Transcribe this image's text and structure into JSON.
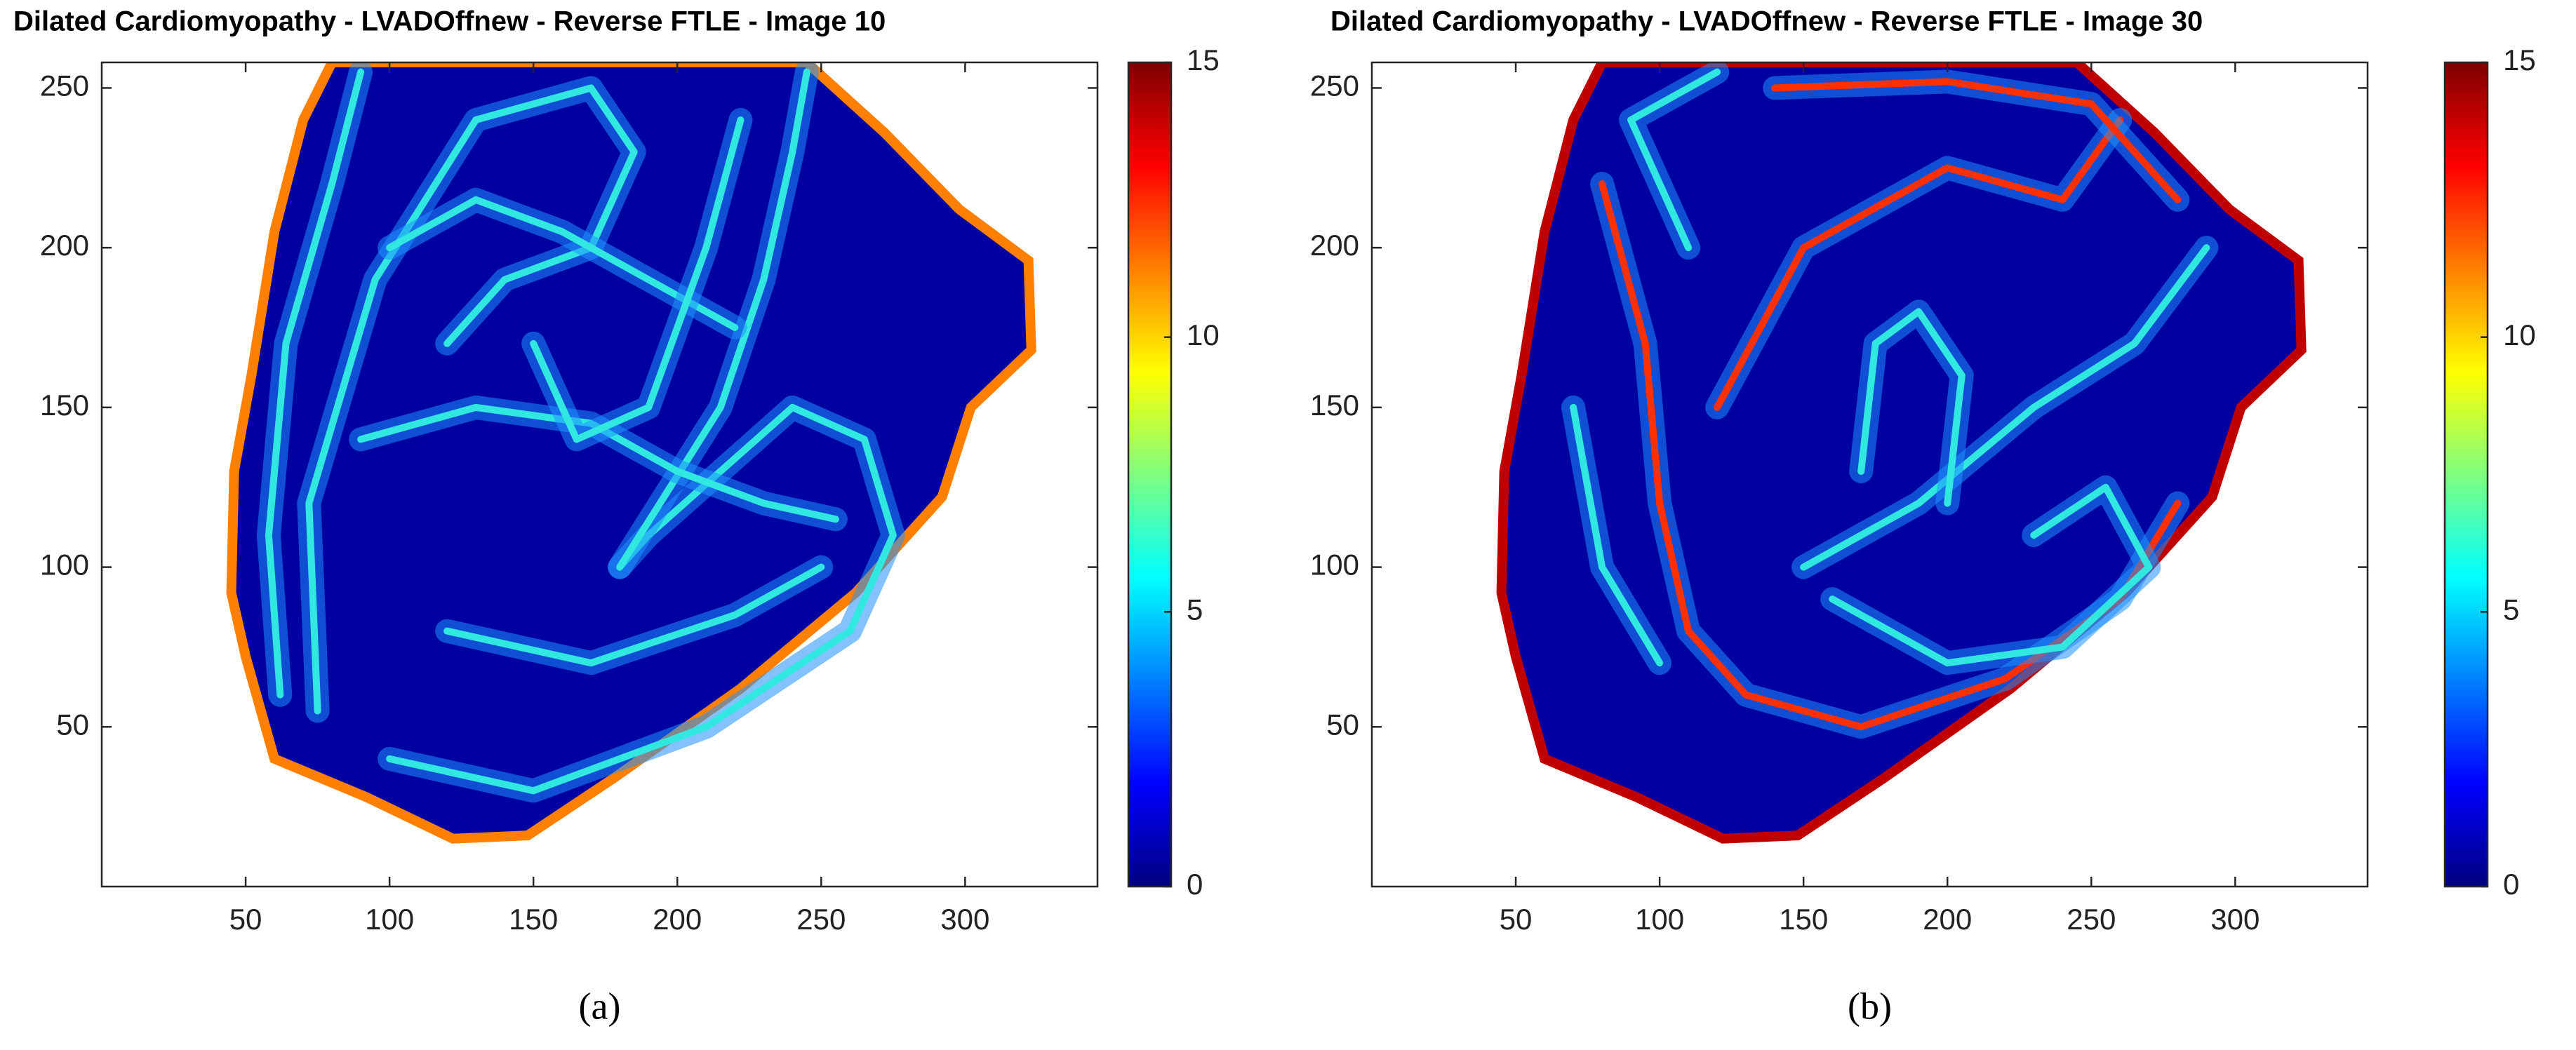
{
  "chart_data": [
    {
      "type": "heatmap",
      "title": "Dilated Cardiomyopathy - LVADOffnew - Reverse FTLE - Image 10",
      "panel_label": "(a)",
      "xlim": [
        0,
        346
      ],
      "ylim": [
        0,
        258
      ],
      "xticks": [
        50,
        100,
        150,
        200,
        250,
        300
      ],
      "yticks": [
        50,
        100,
        150,
        200,
        250
      ],
      "colorbar": {
        "lim": [
          0,
          15
        ],
        "ticks": [
          0,
          5,
          10,
          15
        ],
        "colormap": "jet"
      }
    },
    {
      "type": "heatmap",
      "title": "Dilated Cardiomyopathy - LVADOffnew - Reverse FTLE - Image 30",
      "panel_label": "(b)",
      "xlim": [
        0,
        346
      ],
      "ylim": [
        0,
        258
      ],
      "xticks": [
        50,
        100,
        150,
        200,
        250,
        300
      ],
      "yticks": [
        50,
        100,
        150,
        200,
        250
      ],
      "colorbar": {
        "lim": [
          0,
          15
        ],
        "ticks": [
          0,
          5,
          10,
          15
        ],
        "colormap": "jet"
      }
    }
  ]
}
